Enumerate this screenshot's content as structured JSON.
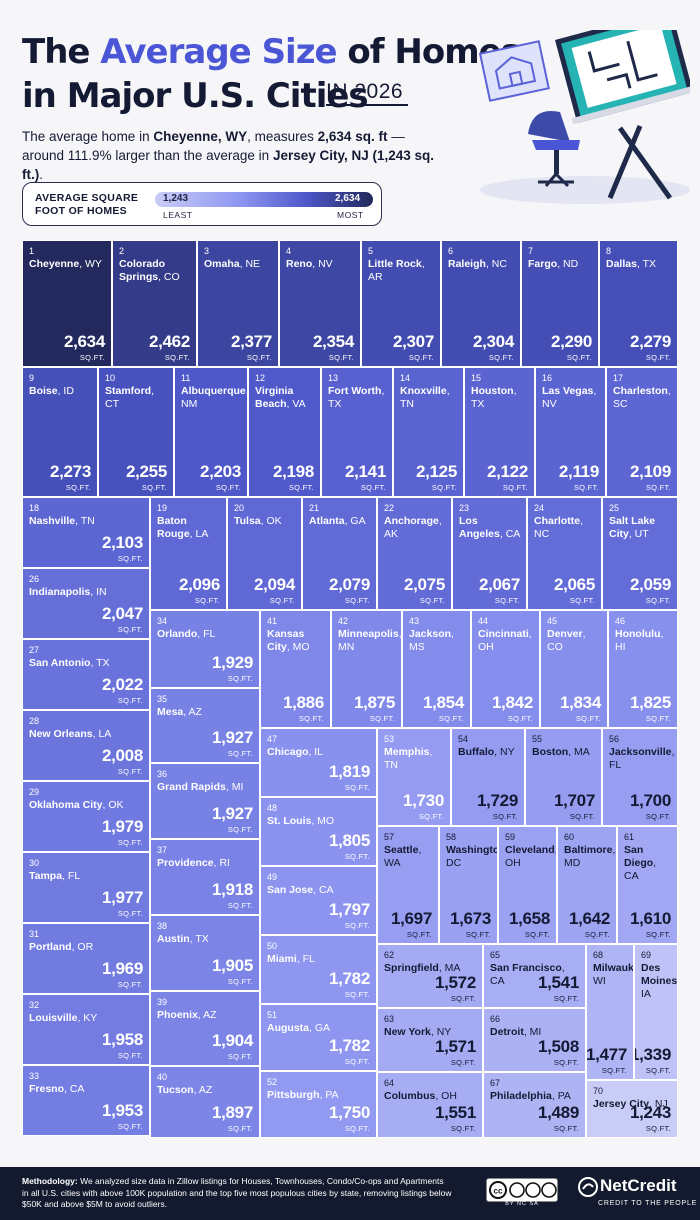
{
  "header": {
    "title_line1_part1": "The ",
    "title_line1_accent": "Average Size",
    "title_line1_part2": " of Homes",
    "title_line2": "in Major U.S. Cities",
    "year": "IN 2026",
    "subtitle_part1": "The average home in ",
    "subtitle_city1": "Cheyenne, WY",
    "subtitle_part2": ", measures ",
    "subtitle_value1": "2,634 sq. ft",
    "subtitle_part3": " — around 111.9% larger than the average in ",
    "subtitle_city2": "Jersey City, NJ (1,243 sq. ft.)",
    "subtitle_part4": "."
  },
  "legend": {
    "title": "AVERAGE SQUARE FOOT OF HOMES",
    "min_value": "1,243",
    "max_value": "2,634",
    "min_label": "LEAST",
    "max_label": "MOST",
    "colors": [
      "#c9ccf7",
      "#8c94f0",
      "#4c56c8",
      "#23295c"
    ]
  },
  "unit_label": "SQ.FT.",
  "chart_data": {
    "type": "treemap",
    "title": "The Average Size of Homes in Major U.S. Cities IN 2026",
    "value_range": [
      1243,
      2634
    ],
    "items": [
      {
        "rank": "1",
        "city": "Cheyenne",
        "state": "WY",
        "value": 2634,
        "value_label": "2,634"
      },
      {
        "rank": "2",
        "city": "Colorado Springs",
        "state": "CO",
        "value": 2462,
        "value_label": "2,462"
      },
      {
        "rank": "3",
        "city": "Omaha",
        "state": "NE",
        "value": 2377,
        "value_label": "2,377"
      },
      {
        "rank": "4",
        "city": "Reno",
        "state": "NV",
        "value": 2354,
        "value_label": "2,354"
      },
      {
        "rank": "5",
        "city": "Little Rock",
        "state": "AR",
        "value": 2307,
        "value_label": "2,307"
      },
      {
        "rank": "6",
        "city": "Raleigh",
        "state": "NC",
        "value": 2304,
        "value_label": "2,304"
      },
      {
        "rank": "7",
        "city": "Fargo",
        "state": "ND",
        "value": 2290,
        "value_label": "2,290"
      },
      {
        "rank": "8",
        "city": "Dallas",
        "state": "TX",
        "value": 2279,
        "value_label": "2,279"
      },
      {
        "rank": "9",
        "city": "Boise",
        "state": "ID",
        "value": 2273,
        "value_label": "2,273"
      },
      {
        "rank": "10",
        "city": "Stamford",
        "state": "CT",
        "value": 2255,
        "value_label": "2,255"
      },
      {
        "rank": "11",
        "city": "Albuquerque",
        "state": "NM",
        "value": 2203,
        "value_label": "2,203"
      },
      {
        "rank": "12",
        "city": "Virginia Beach",
        "state": "VA",
        "value": 2198,
        "value_label": "2,198"
      },
      {
        "rank": "13",
        "city": "Fort Worth",
        "state": "TX",
        "value": 2141,
        "value_label": "2,141"
      },
      {
        "rank": "14",
        "city": "Knoxville",
        "state": "TN",
        "value": 2125,
        "value_label": "2,125"
      },
      {
        "rank": "15",
        "city": "Houston",
        "state": "TX",
        "value": 2122,
        "value_label": "2,122"
      },
      {
        "rank": "16",
        "city": "Las Vegas",
        "state": "NV",
        "value": 2119,
        "value_label": "2,119"
      },
      {
        "rank": "17",
        "city": "Charleston",
        "state": "SC",
        "value": 2109,
        "value_label": "2,109"
      },
      {
        "rank": "18",
        "city": "Nashville",
        "state": "TN",
        "value": 2103,
        "value_label": "2,103"
      },
      {
        "rank": "19",
        "city": "Baton Rouge",
        "state": "LA",
        "value": 2096,
        "value_label": "2,096"
      },
      {
        "rank": "20",
        "city": "Tulsa",
        "state": "OK",
        "value": 2094,
        "value_label": "2,094"
      },
      {
        "rank": "21",
        "city": "Atlanta",
        "state": "GA",
        "value": 2079,
        "value_label": "2,079"
      },
      {
        "rank": "22",
        "city": "Anchorage",
        "state": "AK",
        "value": 2075,
        "value_label": "2,075"
      },
      {
        "rank": "23",
        "city": "Los Angeles",
        "state": "CA",
        "value": 2067,
        "value_label": "2,067"
      },
      {
        "rank": "24",
        "city": "Charlotte",
        "state": "NC",
        "value": 2065,
        "value_label": "2,065"
      },
      {
        "rank": "25",
        "city": "Salt Lake City",
        "state": "UT",
        "value": 2059,
        "value_label": "2,059"
      },
      {
        "rank": "26",
        "city": "Indianapolis",
        "state": "IN",
        "value": 2047,
        "value_label": "2,047"
      },
      {
        "rank": "27",
        "city": "San Antonio",
        "state": "TX",
        "value": 2022,
        "value_label": "2,022"
      },
      {
        "rank": "28",
        "city": "New Orleans",
        "state": "LA",
        "value": 2008,
        "value_label": "2,008"
      },
      {
        "rank": "29",
        "city": "Oklahoma City",
        "state": "OK",
        "value": 1979,
        "value_label": "1,979"
      },
      {
        "rank": "30",
        "city": "Tampa",
        "state": "FL",
        "value": 1977,
        "value_label": "1,977"
      },
      {
        "rank": "31",
        "city": "Portland",
        "state": "OR",
        "value": 1969,
        "value_label": "1,969"
      },
      {
        "rank": "32",
        "city": "Louisville",
        "state": "KY",
        "value": 1958,
        "value_label": "1,958"
      },
      {
        "rank": "33",
        "city": "Fresno",
        "state": "CA",
        "value": 1953,
        "value_label": "1,953"
      },
      {
        "rank": "34",
        "city": "Orlando",
        "state": "FL",
        "value": 1929,
        "value_label": "1,929"
      },
      {
        "rank": "35",
        "city": "Mesa",
        "state": "AZ",
        "value": 1927,
        "value_label": "1,927"
      },
      {
        "rank": "36",
        "city": "Grand Rapids",
        "state": "MI",
        "value": 1927,
        "value_label": "1,927"
      },
      {
        "rank": "37",
        "city": "Providence",
        "state": "RI",
        "value": 1918,
        "value_label": "1,918"
      },
      {
        "rank": "38",
        "city": "Austin",
        "state": "TX",
        "value": 1905,
        "value_label": "1,905"
      },
      {
        "rank": "39",
        "city": "Phoenix",
        "state": "AZ",
        "value": 1904,
        "value_label": "1,904"
      },
      {
        "rank": "40",
        "city": "Tucson",
        "state": "AZ",
        "value": 1897,
        "value_label": "1,897"
      },
      {
        "rank": "41",
        "city": "Kansas City",
        "state": "MO",
        "value": 1886,
        "value_label": "1,886"
      },
      {
        "rank": "42",
        "city": "Minneapolis",
        "state": "MN",
        "value": 1875,
        "value_label": "1,875"
      },
      {
        "rank": "43",
        "city": "Jackson",
        "state": "MS",
        "value": 1854,
        "value_label": "1,854"
      },
      {
        "rank": "44",
        "city": "Cincinnati",
        "state": "OH",
        "value": 1842,
        "value_label": "1,842"
      },
      {
        "rank": "45",
        "city": "Denver",
        "state": "CO",
        "value": 1834,
        "value_label": "1,834"
      },
      {
        "rank": "46",
        "city": "Honolulu",
        "state": "HI",
        "value": 1825,
        "value_label": "1,825"
      },
      {
        "rank": "47",
        "city": "Chicago",
        "state": "IL",
        "value": 1819,
        "value_label": "1,819"
      },
      {
        "rank": "48",
        "city": "St. Louis",
        "state": "MO",
        "value": 1805,
        "value_label": "1,805"
      },
      {
        "rank": "49",
        "city": "San Jose",
        "state": "CA",
        "value": 1797,
        "value_label": "1,797"
      },
      {
        "rank": "50",
        "city": "Miami",
        "state": "FL",
        "value": 1782,
        "value_label": "1,782"
      },
      {
        "rank": "51",
        "city": "Augusta",
        "state": "GA",
        "value": 1782,
        "value_label": "1,782"
      },
      {
        "rank": "52",
        "city": "Pittsburgh",
        "state": "PA",
        "value": 1750,
        "value_label": "1,750"
      },
      {
        "rank": "53",
        "city": "Memphis",
        "state": "TN",
        "value": 1730,
        "value_label": "1,730"
      },
      {
        "rank": "54",
        "city": "Buffalo",
        "state": "NY",
        "value": 1729,
        "value_label": "1,729"
      },
      {
        "rank": "55",
        "city": "Boston",
        "state": "MA",
        "value": 1707,
        "value_label": "1,707"
      },
      {
        "rank": "56",
        "city": "Jacksonville",
        "state": "FL",
        "value": 1700,
        "value_label": "1,700"
      },
      {
        "rank": "57",
        "city": "Seattle",
        "state": "WA",
        "value": 1697,
        "value_label": "1,697"
      },
      {
        "rank": "58",
        "city": "Washington",
        "state": "DC",
        "value": 1673,
        "value_label": "1,673"
      },
      {
        "rank": "59",
        "city": "Cleveland",
        "state": "OH",
        "value": 1658,
        "value_label": "1,658"
      },
      {
        "rank": "60",
        "city": "Baltimore",
        "state": "MD",
        "value": 1642,
        "value_label": "1,642"
      },
      {
        "rank": "61",
        "city": "San Diego",
        "state": "CA",
        "value": 1610,
        "value_label": "1,610"
      },
      {
        "rank": "62",
        "city": "Springfield",
        "state": "MA",
        "value": 1572,
        "value_label": "1,572"
      },
      {
        "rank": "63",
        "city": "New York",
        "state": "NY",
        "value": 1571,
        "value_label": "1,571"
      },
      {
        "rank": "64",
        "city": "Columbus",
        "state": "OH",
        "value": 1551,
        "value_label": "1,551"
      },
      {
        "rank": "65",
        "city": "San Francisco",
        "state": "CA",
        "value": 1541,
        "value_label": "1,541"
      },
      {
        "rank": "66",
        "city": "Detroit",
        "state": "MI",
        "value": 1508,
        "value_label": "1,508"
      },
      {
        "rank": "67",
        "city": "Philadelphia",
        "state": "PA",
        "value": 1489,
        "value_label": "1,489"
      },
      {
        "rank": "68",
        "city": "Milwaukee",
        "state": "WI",
        "value": 1477,
        "value_label": "1,477"
      },
      {
        "rank": "69",
        "city": "Des Moines",
        "state": "IA",
        "value": 1339,
        "value_label": "1,339"
      },
      {
        "rank": "70",
        "city": "Jersey City",
        "state": "NJ",
        "value": 1243,
        "value_label": "1,243"
      }
    ]
  },
  "footer": {
    "methodology_label": "Methodology:",
    "methodology_text": " We analyzed size data in Zillow listings for Houses, Townhouses, Condo/Co-ops and Apartments in all U.S. cities with above 100K population and the top five most populous cities by state, removing listings below $50K and above $5M to avoid outliers.",
    "license_text": "BY  NC  SA",
    "brand_name": "NetCredit",
    "brand_tagline": "CREDIT TO THE PEOPLE"
  }
}
